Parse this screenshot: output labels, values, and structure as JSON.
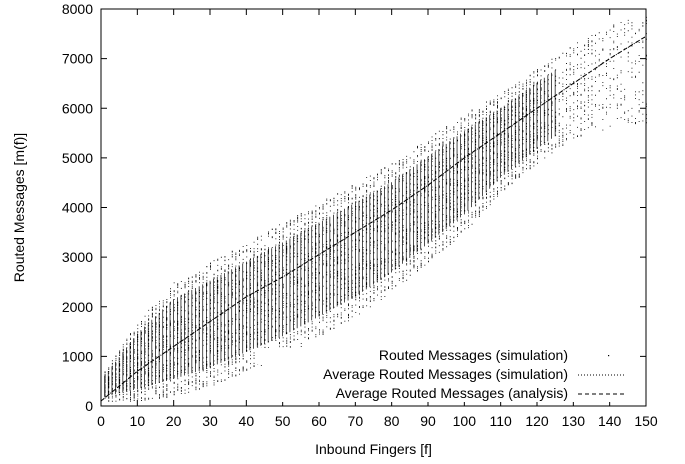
{
  "chart_data": {
    "type": "scatter",
    "title": "",
    "xlabel": "Inbound Fingers [f]",
    "ylabel": "Routed Messages [m(f)]",
    "xlim": [
      0,
      150
    ],
    "ylim": [
      0,
      8000
    ],
    "xticks": [
      0,
      10,
      20,
      30,
      40,
      50,
      60,
      70,
      80,
      90,
      100,
      110,
      120,
      130,
      140,
      150
    ],
    "yticks": [
      0,
      1000,
      2000,
      3000,
      4000,
      5000,
      6000,
      7000,
      8000
    ],
    "grid": false,
    "legend_position": "bottom-right",
    "series": [
      {
        "name": "Routed Messages (simulation)",
        "style": "points",
        "band": {
          "x": [
            1,
            10,
            20,
            30,
            40,
            50,
            60,
            70,
            80,
            90,
            100,
            110,
            120,
            130,
            140,
            150
          ],
          "y_low": [
            100,
            100,
            200,
            400,
            700,
            1000,
            1400,
            1800,
            2300,
            2900,
            3500,
            4300,
            4900,
            5400,
            5600,
            5700
          ],
          "y_high": [
            700,
            1700,
            2500,
            2900,
            3300,
            3700,
            4100,
            4500,
            4900,
            5400,
            5900,
            6300,
            6800,
            7300,
            7700,
            7900
          ]
        }
      },
      {
        "name": "Average Routed Messages (simulation)",
        "style": "dotted",
        "x": [
          0,
          10,
          20,
          30,
          40,
          50,
          60,
          70,
          80,
          90,
          100,
          110,
          120,
          130,
          140,
          150
        ],
        "y": [
          100,
          700,
          1200,
          1700,
          2200,
          2600,
          3050,
          3500,
          3950,
          4450,
          5000,
          5500,
          6000,
          6500,
          7000,
          7450
        ]
      },
      {
        "name": "Average Routed Messages (analysis)",
        "style": "dashed",
        "x": [
          0,
          10,
          20,
          30,
          40,
          50,
          60,
          70,
          80,
          90,
          100,
          110,
          120,
          130,
          140,
          150
        ],
        "y": [
          100,
          700,
          1200,
          1700,
          2200,
          2600,
          3050,
          3500,
          3950,
          4450,
          5000,
          5500,
          6000,
          6500,
          7000,
          7450
        ]
      }
    ]
  }
}
